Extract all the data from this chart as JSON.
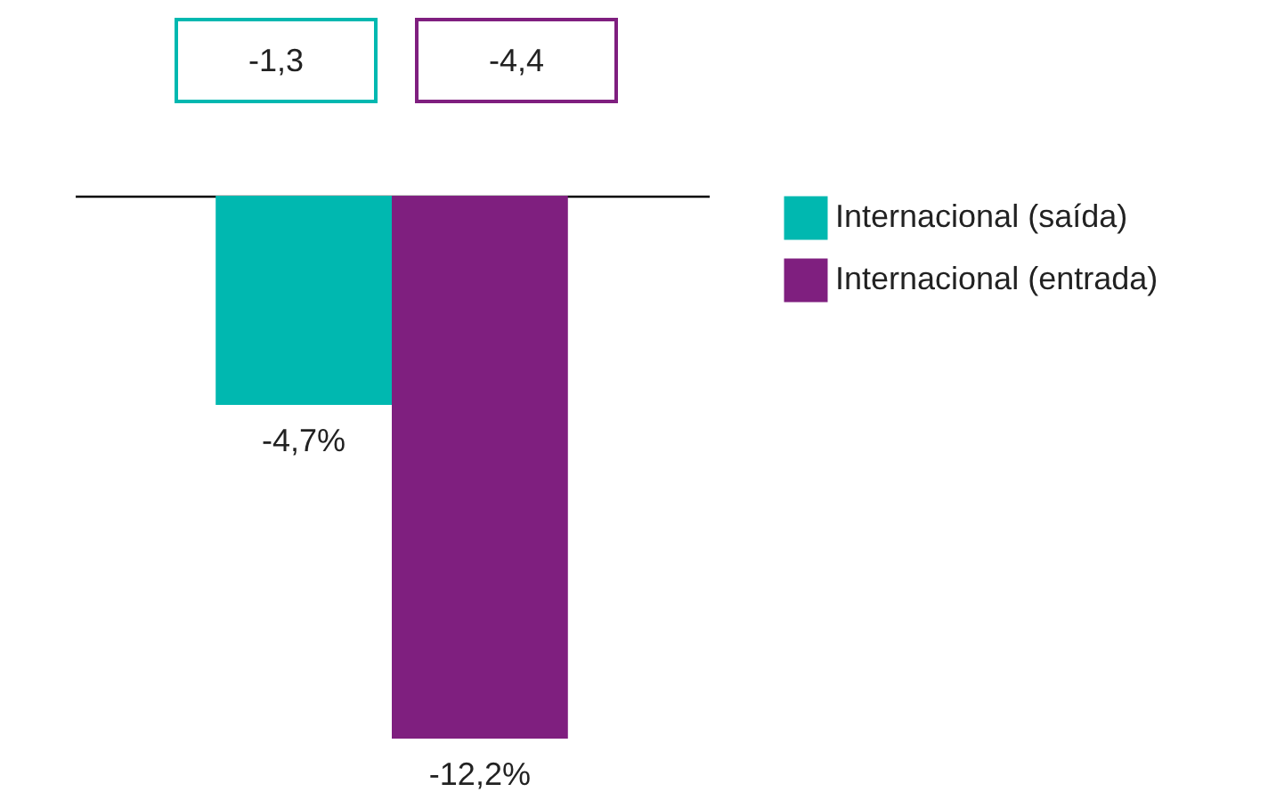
{
  "chart_data": {
    "type": "bar",
    "categories": [
      null
    ],
    "series": [
      {
        "name": "Internacional (saída)",
        "color": "#00b8b0",
        "values": [
          -4.7
        ],
        "value_labels": [
          "-4,7%"
        ]
      },
      {
        "name": "Internacional (entrada)",
        "color": "#7f1f7f",
        "values": [
          -12.2
        ],
        "value_labels": [
          "-12,2%"
        ]
      }
    ],
    "annotations": [
      "-1,3",
      "-4,4"
    ],
    "legend": "right",
    "tick_labels": false,
    "grid": false
  }
}
